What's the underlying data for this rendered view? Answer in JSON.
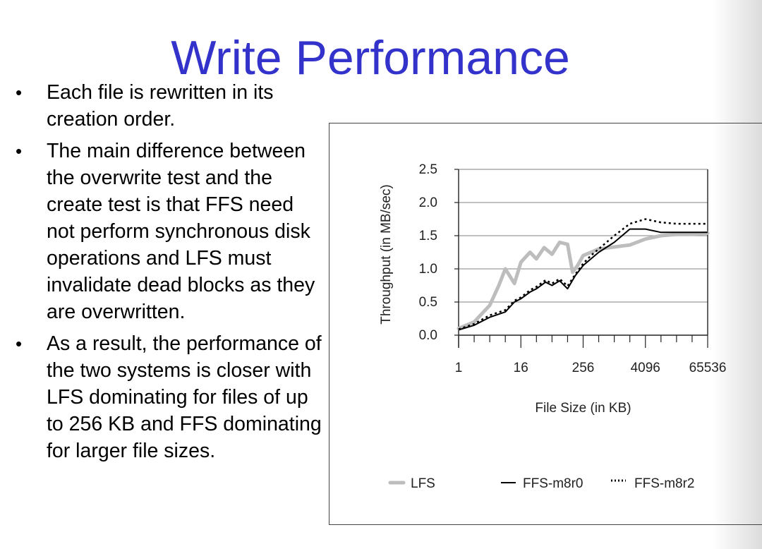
{
  "slide": {
    "title": "Write Performance",
    "bullets": [
      "Each file is rewritten in its creation order.",
      "The main difference between the overwrite test and the create test is that FFS need not perform synchronous disk operations and LFS must invalidate dead blocks as they are overwritten.",
      "As a result, the performance of the two systems is closer with LFS dominating for files of up to 256 KB and FFS dominating for larger file sizes."
    ]
  },
  "chart_data": {
    "type": "line",
    "title": "",
    "xlabel": "File Size (in KB)",
    "ylabel": "Throughput (in MB/sec)",
    "x_scale": "log2",
    "x_ticks": [
      "1",
      "16",
      "256",
      "4096",
      "65536"
    ],
    "y_ticks": [
      "0.0",
      "0.5",
      "1.0",
      "1.5",
      "2.0",
      "2.5"
    ],
    "xlim": [
      1,
      65536
    ],
    "ylim": [
      0,
      2.5
    ],
    "grid": "horizontal",
    "legend_position": "bottom",
    "series": [
      {
        "name": "LFS",
        "color": "#bdbdbd",
        "style": "thick-solid",
        "x": [
          1,
          2,
          4,
          6,
          8,
          12,
          16,
          24,
          32,
          45,
          64,
          90,
          128,
          160,
          200,
          256,
          362,
          512,
          1024,
          2048,
          4096,
          8192,
          16384,
          32768,
          65536
        ],
        "y": [
          0.1,
          0.2,
          0.45,
          0.75,
          1.0,
          0.78,
          1.1,
          1.25,
          1.15,
          1.32,
          1.22,
          1.4,
          1.37,
          0.95,
          1.05,
          1.2,
          1.25,
          1.3,
          1.33,
          1.36,
          1.45,
          1.5,
          1.52,
          1.52,
          1.54
        ],
        "values_shown": [
          "LFS"
        ]
      },
      {
        "name": "FFS-m8r0",
        "color": "#000000",
        "style": "solid",
        "x": [
          1,
          2,
          4,
          8,
          12,
          16,
          24,
          32,
          48,
          64,
          90,
          128,
          181,
          256,
          362,
          512,
          1024,
          2048,
          4096,
          8192,
          16384,
          65536
        ],
        "y": [
          0.08,
          0.15,
          0.27,
          0.35,
          0.5,
          0.55,
          0.65,
          0.7,
          0.8,
          0.75,
          0.82,
          0.7,
          0.9,
          1.05,
          1.15,
          1.25,
          1.4,
          1.6,
          1.6,
          1.55,
          1.55,
          1.55
        ]
      },
      {
        "name": "FFS-m8r2",
        "color": "#000000",
        "style": "dotted",
        "x": [
          1,
          2,
          4,
          8,
          12,
          16,
          24,
          32,
          48,
          64,
          90,
          128,
          181,
          256,
          362,
          512,
          1024,
          2048,
          4096,
          8192,
          16384,
          65536
        ],
        "y": [
          0.09,
          0.17,
          0.3,
          0.38,
          0.52,
          0.57,
          0.68,
          0.73,
          0.83,
          0.78,
          0.85,
          0.74,
          0.92,
          1.08,
          1.2,
          1.3,
          1.5,
          1.68,
          1.75,
          1.7,
          1.68,
          1.68
        ]
      }
    ]
  }
}
